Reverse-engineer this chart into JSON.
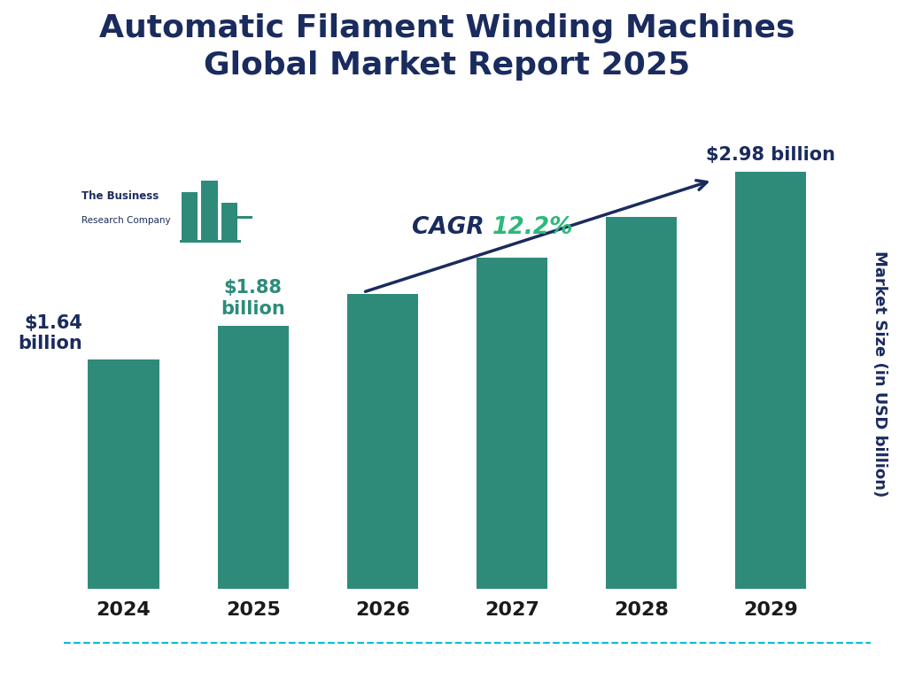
{
  "title": "Automatic Filament Winding Machines\nGlobal Market Report 2025",
  "title_color": "#1a2b5e",
  "bar_color": "#2e8b7a",
  "background_color": "#ffffff",
  "years": [
    "2024",
    "2025",
    "2026",
    "2027",
    "2028",
    "2029"
  ],
  "values": [
    1.64,
    1.88,
    2.11,
    2.37,
    2.66,
    2.98
  ],
  "ylabel": "Market Size (in USD billion)",
  "ylabel_color": "#1a2b5e",
  "cagr_color": "#1a2b5e",
  "cagr_pct_color": "#2db87a",
  "bottom_line_color": "#00bcd4",
  "ylim": [
    0,
    3.5
  ],
  "logo_text1": "The Business",
  "logo_text2": "Research Company"
}
